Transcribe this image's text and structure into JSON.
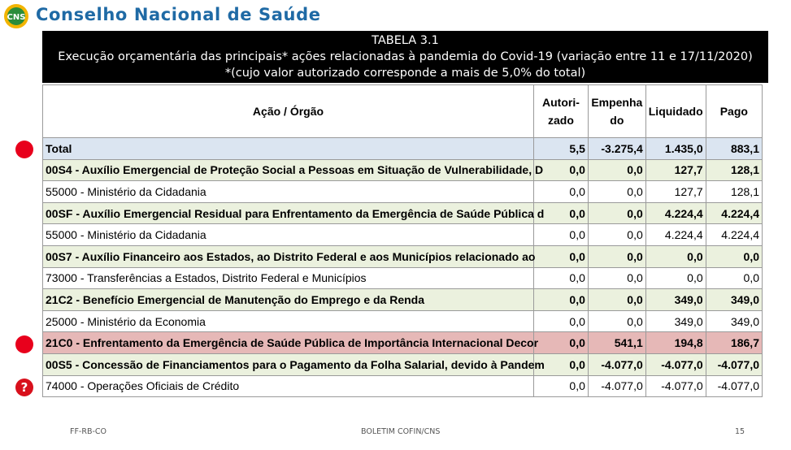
{
  "header": {
    "title": "Conselho Nacional de Saúde",
    "logo_text": "CNS"
  },
  "table_title": {
    "line1": "TABELA 3.1",
    "line2": "Execução orçamentária das principais* ações relacionadas à pandemia do Covid-19 (variação entre 11 e 17/11/2020)",
    "line3": "*(cujo valor autorizado corresponde a mais de 5,0% do total)"
  },
  "columns": {
    "acao": "Ação / Órgão",
    "autorizado_1": "Autori-",
    "autorizado_2": "zado",
    "empenhado_1": "Empenha",
    "empenhado_2": "do",
    "liquidado": "Liquidado",
    "pago": "Pago"
  },
  "rows": [
    {
      "label": "Total",
      "autorizado": "5,5",
      "empenhado": "-3.275,4",
      "liquidado": "1.435,0",
      "pago": "883,1"
    },
    {
      "label": "00S4 - Auxílio Emergencial de Proteção Social a Pessoas em Situação de Vulnerabilidade, D",
      "autorizado": "0,0",
      "empenhado": "0,0",
      "liquidado": "127,7",
      "pago": "128,1"
    },
    {
      "label": "55000 - Ministério da Cidadania",
      "autorizado": "0,0",
      "empenhado": "0,0",
      "liquidado": "127,7",
      "pago": "128,1"
    },
    {
      "label": "00SF - Auxílio Emergencial Residual para Enfrentamento da Emergência de Saúde Pública d",
      "autorizado": "0,0",
      "empenhado": "0,0",
      "liquidado": "4.224,4",
      "pago": "4.224,4"
    },
    {
      "label": "55000 - Ministério da Cidadania",
      "autorizado": "0,0",
      "empenhado": "0,0",
      "liquidado": "4.224,4",
      "pago": "4.224,4"
    },
    {
      "label": "00S7 - Auxílio Financeiro aos Estados, ao Distrito Federal e aos Municípios relacionado ao",
      "autorizado": "0,0",
      "empenhado": "0,0",
      "liquidado": "0,0",
      "pago": "0,0"
    },
    {
      "label": "73000 - Transferências a Estados, Distrito Federal e Municípios",
      "autorizado": "0,0",
      "empenhado": "0,0",
      "liquidado": "0,0",
      "pago": "0,0"
    },
    {
      "label": "21C2 - Benefício Emergencial de Manutenção do Emprego e da Renda",
      "autorizado": "0,0",
      "empenhado": "0,0",
      "liquidado": "349,0",
      "pago": "349,0"
    },
    {
      "label": "25000 - Ministério da Economia",
      "autorizado": "0,0",
      "empenhado": "0,0",
      "liquidado": "349,0",
      "pago": "349,0"
    },
    {
      "label": "21C0 - Enfrentamento da Emergência de Saúde Pública de Importância Internacional Decor",
      "autorizado": "0,0",
      "empenhado": "541,1",
      "liquidado": "194,8",
      "pago": "186,7"
    },
    {
      "label": "00S5 - Concessão de Financiamentos para o Pagamento da Folha Salarial, devido à Pandem",
      "autorizado": "0,0",
      "empenhado": "-4.077,0",
      "liquidado": "-4.077,0",
      "pago": "-4.077,0"
    },
    {
      "label": "74000 - Operações Oficiais de Crédito",
      "autorizado": "0,0",
      "empenhado": "-4.077,0",
      "liquidado": "-4.077,0",
      "pago": "-4.077,0"
    }
  ],
  "markers": {
    "question": "?"
  },
  "footer": {
    "left": "FF-RB-CO",
    "center": "BOLETIM COFIN/CNS",
    "page": "15"
  },
  "colors": {
    "total_row": "#dbe5f1",
    "action_row": "#ebf1de",
    "highlight_row": "#e6b8b7",
    "marker": "#e8001c"
  }
}
